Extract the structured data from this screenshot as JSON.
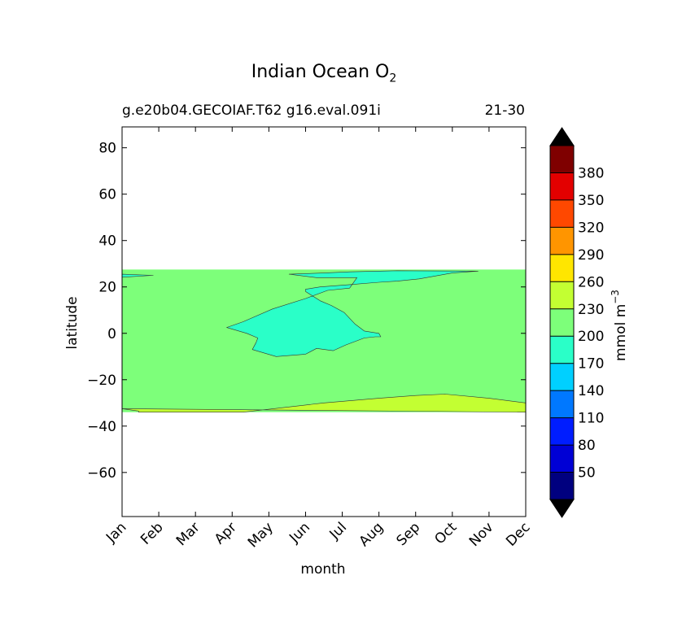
{
  "title": {
    "text": "Indian Ocean O",
    "subscript": "2"
  },
  "subtitle_left": "g.e20b04.GECOIAF.T62 g16.eval.091i",
  "subtitle_right": "21-30",
  "chart_data": {
    "type": "heatmap",
    "plot_kind": "filled contour",
    "xlabel": "month",
    "ylabel": "latitude",
    "x_ticks": [
      "Jan",
      "Feb",
      "Mar",
      "Apr",
      "May",
      "Jun",
      "Jul",
      "Aug",
      "Sep",
      "Oct",
      "Nov",
      "Dec"
    ],
    "x_range": [
      0,
      11
    ],
    "y_ticks": [
      80,
      60,
      40,
      20,
      0,
      -20,
      -40,
      -60
    ],
    "y_tick_labels": [
      "80",
      "60",
      "40",
      "20",
      "0",
      "−20",
      "−40",
      "−60"
    ],
    "ylim": [
      -79,
      89
    ],
    "data_extent_lat": [
      -34,
      27.5
    ],
    "grid": false,
    "regions": [
      {
        "level_range": [
          200,
          230
        ],
        "color": "#7dff7a",
        "description": "background field, most of basin"
      },
      {
        "level_range": [
          170,
          200
        ],
        "color": "#2affc8",
        "outline": [
          [
            4.55,
            25.5
          ],
          [
            5.3,
            24.0
          ],
          [
            6.4,
            24.0
          ],
          [
            6.2,
            19.5
          ],
          [
            5.6,
            18.5
          ],
          [
            5.0,
            15.0
          ],
          [
            4.1,
            10.5
          ],
          [
            3.3,
            5.0
          ],
          [
            2.85,
            2.5
          ],
          [
            3.4,
            0.0
          ],
          [
            3.7,
            -2.0
          ],
          [
            3.65,
            -4.0
          ],
          [
            3.55,
            -7.0
          ],
          [
            4.2,
            -10.0
          ],
          [
            5.0,
            -9.0
          ],
          [
            5.3,
            -6.5
          ],
          [
            5.75,
            -7.5
          ],
          [
            6.1,
            -5.0
          ],
          [
            6.6,
            -2.0
          ],
          [
            6.9,
            -1.5
          ],
          [
            7.05,
            -1.5
          ],
          [
            7.0,
            0.0
          ],
          [
            6.6,
            1.0
          ],
          [
            6.35,
            4.0
          ],
          [
            6.05,
            9.0
          ],
          [
            5.7,
            12.0
          ],
          [
            5.4,
            14.0
          ],
          [
            5.0,
            18.0
          ],
          [
            5.0,
            19.0
          ],
          [
            5.4,
            20.0
          ],
          [
            6.2,
            21.0
          ],
          [
            7.0,
            22.0
          ],
          [
            7.5,
            22.5
          ],
          [
            8.1,
            23.5
          ],
          [
            9.0,
            26.0
          ],
          [
            9.7,
            26.8
          ],
          [
            7.5,
            27.0
          ],
          [
            6.2,
            26.5
          ],
          [
            5.5,
            26.0
          ],
          [
            4.55,
            25.5
          ]
        ]
      },
      {
        "level_range": [
          170,
          200
        ],
        "color": "#2affc8",
        "description": "small patch at Jan",
        "outline": [
          [
            0.0,
            25.5
          ],
          [
            0.85,
            25.0
          ],
          [
            0.0,
            24.2
          ]
        ]
      },
      {
        "level_range": [
          230,
          260
        ],
        "color": "#c3ff32",
        "description": "southern band",
        "outline": [
          [
            0.0,
            -32.5
          ],
          [
            0.45,
            -33.5
          ],
          [
            0.45,
            -34.0
          ],
          [
            3.3,
            -34.0
          ],
          [
            5.5,
            -30.0
          ],
          [
            7.0,
            -28.0
          ],
          [
            8.0,
            -26.8
          ],
          [
            8.8,
            -26.2
          ],
          [
            10.0,
            -28.0
          ],
          [
            11.0,
            -30.0
          ],
          [
            11.0,
            -34.0
          ]
        ]
      }
    ],
    "colorbar": {
      "label": "mmol m",
      "label_superscript": "−3",
      "tick_labels": [
        "50",
        "80",
        "110",
        "140",
        "170",
        "200",
        "230",
        "260",
        "290",
        "320",
        "350",
        "380"
      ],
      "colors": [
        "#00007f",
        "#0000d5",
        "#001dff",
        "#0078ff",
        "#00d0ff",
        "#2affc8",
        "#7dff7a",
        "#c3ff32",
        "#ffe600",
        "#ff9500",
        "#ff4800",
        "#e30000",
        "#7f0000"
      ],
      "extend": "both",
      "extend_color": "#000000"
    }
  }
}
